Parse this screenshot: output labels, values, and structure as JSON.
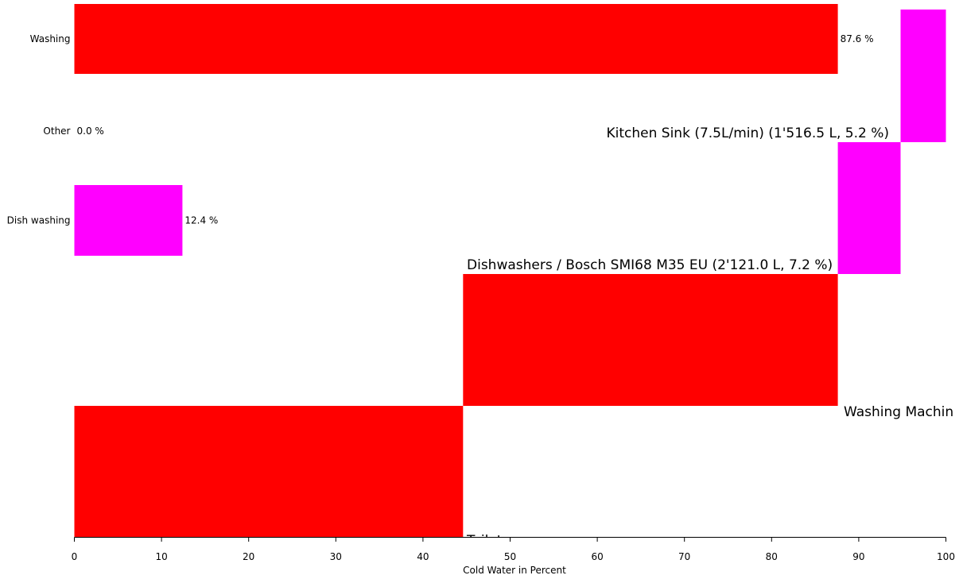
{
  "chart_data": {
    "type": "bar",
    "orientation": "horizontal",
    "xlabel": "Cold Water in Percent",
    "xlim": [
      0,
      100
    ],
    "x_ticks": [
      "0",
      "10",
      "20",
      "30",
      "40",
      "50",
      "60",
      "70",
      "80",
      "90",
      "100"
    ],
    "grid": false,
    "colors": {
      "red": "#ff0000",
      "magenta": "#ff00ff"
    },
    "categories": [
      {
        "name": "Washing",
        "value": 87.6,
        "label": "87.6 %",
        "color": "#ff0000"
      },
      {
        "name": "Other",
        "value": 0.0,
        "label": "0.0 %",
        "color": "#ff00ff"
      },
      {
        "name": "Dish washing",
        "value": 12.4,
        "label": "12.4 %",
        "color": "#ff00ff"
      }
    ],
    "waterfall": [
      {
        "start": 0.0,
        "end": 44.6,
        "color": "#ff0000",
        "label": "Toilet"
      },
      {
        "start": 44.6,
        "end": 87.6,
        "color": "#ff0000",
        "label": "Washing Machin"
      },
      {
        "start": 87.6,
        "end": 94.8,
        "color": "#ff00ff",
        "label": "Dishwashers / Bosch SMI68 M35 EU (2'121.0 L, 7.2 %)"
      },
      {
        "start": 94.8,
        "end": 100.0,
        "color": "#ff00ff",
        "label": "Kitchen Sink (7.5L/min) (1'516.5 L, 5.2 %)"
      }
    ]
  }
}
